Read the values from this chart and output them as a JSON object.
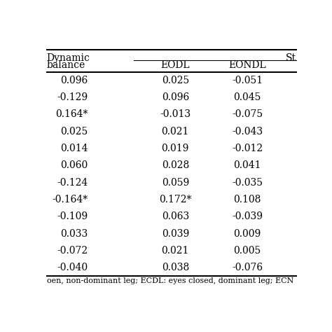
{
  "col_headers_row1_left": "Dynamic",
  "col_headers_row1_right": "St",
  "col_headers_row2": [
    "balance",
    "EODL",
    "EONDL"
  ],
  "rows": [
    [
      "0.096",
      "0.025",
      "-0.051"
    ],
    [
      "-0.129",
      "0.096",
      "0.045"
    ],
    [
      "0.164*",
      "-0.013",
      "-0.075"
    ],
    [
      "0.025",
      "0.021",
      "-0.043"
    ],
    [
      "0.014",
      "0.019",
      "-0.012"
    ],
    [
      "0.060",
      "0.028",
      "0.041"
    ],
    [
      "-0.124",
      "0.059",
      "-0.035"
    ],
    [
      "-0.164*",
      "0.172*",
      "0.108"
    ],
    [
      "-0.109",
      "0.063",
      "-0.039"
    ],
    [
      "0.033",
      "0.039",
      "0.009"
    ],
    [
      "-0.072",
      "0.021",
      "0.005"
    ],
    [
      "-0.040",
      "0.038",
      "-0.076"
    ]
  ],
  "footer": "oen, non-dominant leg; ECDL: eyes closed, dominant leg; ECN",
  "bg_color": "#ffffff",
  "text_color": "#000000",
  "font_size": 10,
  "header_font_size": 10,
  "footer_font_size": 8
}
